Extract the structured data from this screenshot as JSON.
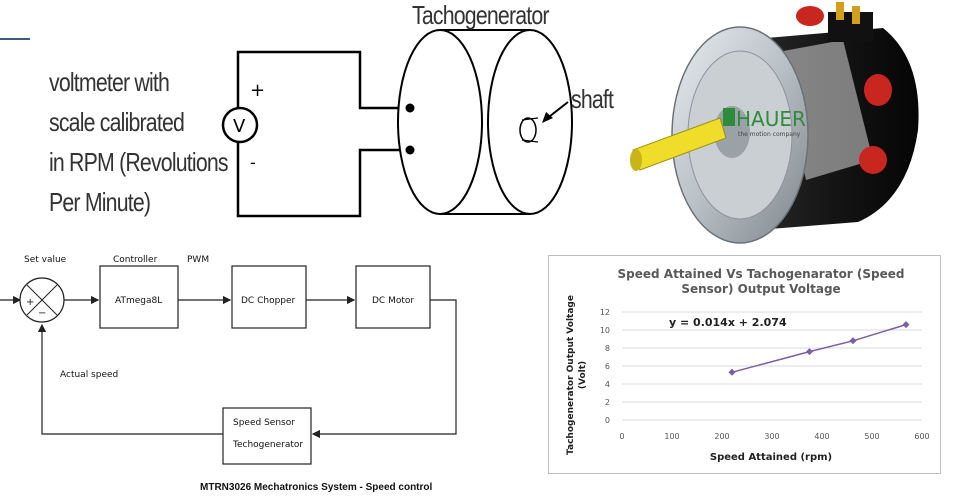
{
  "tacho_sketch": {
    "voltmeter_caption": [
      "voltmeter with",
      "scale calibrated",
      "in RPM (Revolutions",
      "Per Minute)"
    ],
    "voltmeter_symbol": "V",
    "plus": "+",
    "minus": "-",
    "tacho_label": "Tachogenerator",
    "shaft_label": "shaft"
  },
  "photo": {
    "brand": "HAUER",
    "brand_tagline": "the motion company"
  },
  "block_diagram": {
    "set_value": "Set value",
    "controller_label": "Controller",
    "pwm_label": "PWM",
    "controller_box": "ATmega8L",
    "chopper_box": "DC Chopper",
    "motor_box": "DC Motor",
    "sensor_box_line1": "Speed Sensor",
    "sensor_box_line2": "Techogenerator",
    "actual_speed": "Actual speed",
    "sum_plus": "+",
    "sum_minus": "−"
  },
  "footer": {
    "caption": "MTRN3026 Mechatronics System - Speed control"
  },
  "chart_data": {
    "type": "line",
    "title_lines": [
      "Speed Attained Vs Tachogenarator (Speed",
      "Sensor) Output Voltage"
    ],
    "xlabel": "Speed Attained (rpm)",
    "ylabel_lines": [
      "Tachogenerator Output Voltage",
      "(Volt)"
    ],
    "equation": "y = 0.014x + 2.074",
    "xlim": [
      0,
      600
    ],
    "ylim": [
      0,
      12
    ],
    "xticks": [
      0,
      100,
      200,
      300,
      400,
      500,
      600
    ],
    "yticks": [
      0,
      2,
      4,
      6,
      8,
      10,
      12
    ],
    "grid": true,
    "series": [
      {
        "x": [
          220,
          375,
          462,
          568
        ],
        "y": [
          5.3,
          7.6,
          8.8,
          10.6
        ],
        "color": "#7b5ea7"
      }
    ]
  }
}
